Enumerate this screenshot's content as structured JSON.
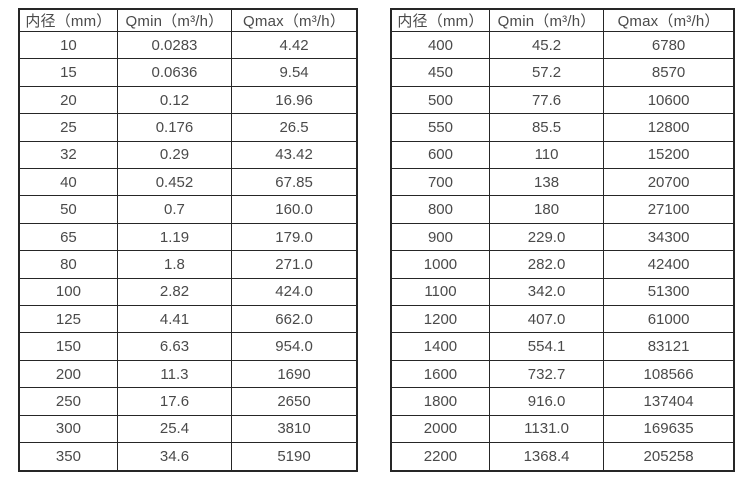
{
  "tables": [
    {
      "name": "flow-table-small-diameters",
      "headers": [
        "内径（mm）",
        "Qmin（m³/h）",
        "Qmax（m³/h）"
      ],
      "rows": [
        [
          "10",
          "0.0283",
          "4.42"
        ],
        [
          "15",
          "0.0636",
          "9.54"
        ],
        [
          "20",
          "0.12",
          "16.96"
        ],
        [
          "25",
          "0.176",
          "26.5"
        ],
        [
          "32",
          "0.29",
          "43.42"
        ],
        [
          "40",
          "0.452",
          "67.85"
        ],
        [
          "50",
          "0.7",
          "160.0"
        ],
        [
          "65",
          "1.19",
          "179.0"
        ],
        [
          "80",
          "1.8",
          "271.0"
        ],
        [
          "100",
          "2.82",
          "424.0"
        ],
        [
          "125",
          "4.41",
          "662.0"
        ],
        [
          "150",
          "6.63",
          "954.0"
        ],
        [
          "200",
          "11.3",
          "1690"
        ],
        [
          "250",
          "17.6",
          "2650"
        ],
        [
          "300",
          "25.4",
          "3810"
        ],
        [
          "350",
          "34.6",
          "5190"
        ]
      ]
    },
    {
      "name": "flow-table-large-diameters",
      "headers": [
        "内径（mm）",
        "Qmin（m³/h）",
        "Qmax（m³/h）"
      ],
      "rows": [
        [
          "400",
          "45.2",
          "6780"
        ],
        [
          "450",
          "57.2",
          "8570"
        ],
        [
          "500",
          "77.6",
          "10600"
        ],
        [
          "550",
          "85.5",
          "12800"
        ],
        [
          "600",
          "110",
          "15200"
        ],
        [
          "700",
          "138",
          "20700"
        ],
        [
          "800",
          "180",
          "27100"
        ],
        [
          "900",
          "229.0",
          "34300"
        ],
        [
          "1000",
          "282.0",
          "42400"
        ],
        [
          "1100",
          "342.0",
          "51300"
        ],
        [
          "1200",
          "407.0",
          "61000"
        ],
        [
          "1400",
          "554.1",
          "83121"
        ],
        [
          "1600",
          "732.7",
          "108566"
        ],
        [
          "1800",
          "916.0",
          "137404"
        ],
        [
          "2000",
          "1131.0",
          "169635"
        ],
        [
          "2200",
          "1368.4",
          "205258"
        ]
      ]
    }
  ],
  "colors": {
    "border": "#262626",
    "text": "#4a4a4a",
    "background": "#ffffff"
  }
}
